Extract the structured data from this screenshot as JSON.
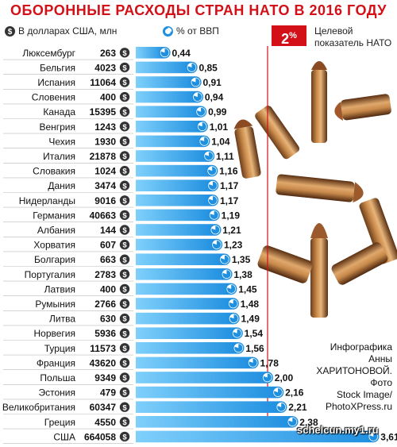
{
  "header": {
    "title": "ОБОРОННЫЕ РАСХОДЫ СТРАН НАТО В 2016 ГОДУ",
    "legend_usd": "В долларах США, млн",
    "legend_gdp": "% от ВВП",
    "target_value": "2",
    "target_unit": "%",
    "target_label": "Целевой показатель НАТО"
  },
  "credit": {
    "line1": "Инфографика",
    "line2": "Анны",
    "line3": "ХАРИТОНОВОЙ.",
    "line4": "Фото",
    "line5": "Stock Image/",
    "line6": "PhotoXPress.ru"
  },
  "watermark": "schelcun.my1.ru",
  "colors": {
    "title": "#d31018",
    "bar": "#1f8fe0",
    "bar_light": "#7fd0fb",
    "target_line": "#d31018",
    "dollar_badge": "#333333",
    "gdp_badge": "#1f8fe0"
  },
  "chart_data": {
    "type": "bar",
    "title": "ОБОРОННЫЕ РАСХОДЫ СТРАН НАТО В 2016 ГОДУ",
    "categories": [
      "Люксембург",
      "Бельгия",
      "Испания",
      "Словения",
      "Канада",
      "Венгрия",
      "Чехия",
      "Италия",
      "Словакия",
      "Дания",
      "Нидерланды",
      "Германия",
      "Албания",
      "Хорватия",
      "Болгария",
      "Португалия",
      "Латвия",
      "Румыния",
      "Литва",
      "Норвегия",
      "Турция",
      "Франция",
      "Польша",
      "Эстония",
      "Великобритания",
      "Греция",
      "США"
    ],
    "series": [
      {
        "name": "В долларах США, млн",
        "values": [
          263,
          4023,
          11064,
          400,
          15395,
          1243,
          1930,
          21878,
          1024,
          3474,
          9016,
          40663,
          144,
          607,
          663,
          2783,
          400,
          2766,
          630,
          5936,
          11573,
          43620,
          9349,
          479,
          60347,
          4550,
          664058
        ]
      },
      {
        "name": "% от ВВП",
        "values": [
          0.44,
          0.85,
          0.91,
          0.94,
          0.99,
          1.01,
          1.04,
          1.11,
          1.16,
          1.17,
          1.17,
          1.19,
          1.21,
          1.23,
          1.35,
          1.38,
          1.45,
          1.48,
          1.49,
          1.54,
          1.56,
          1.78,
          2.0,
          2.16,
          2.21,
          2.38,
          3.61
        ]
      }
    ],
    "value_labels": [
      "0,44",
      "0,85",
      "0,91",
      "0,94",
      "0,99",
      "1,01",
      "1,04",
      "1,11",
      "1,16",
      "1,17",
      "1,17",
      "1,19",
      "1,21",
      "1,23",
      "1,35",
      "1,38",
      "1,45",
      "1,48",
      "1,49",
      "1,54",
      "1,56",
      "1,78",
      "2,00",
      "2,16",
      "2,21",
      "2,38",
      "3,61"
    ],
    "reference_line": 2,
    "xlim": [
      0,
      4.5
    ],
    "grid": false,
    "legend_placement": "top"
  }
}
